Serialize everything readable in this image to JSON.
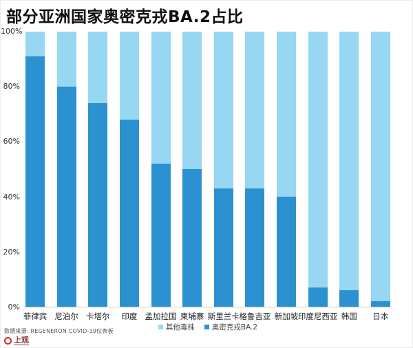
{
  "title": "部分亚洲国家奥密克戎BA.2占比",
  "y_axis": {
    "ticks": [
      "100%",
      "80%",
      "60%",
      "40%",
      "20%",
      "0%"
    ]
  },
  "legend": {
    "items": [
      {
        "label": "其他毒株",
        "color": "#97d7f1"
      },
      {
        "label": "奥密克戎BA.2",
        "color": "#2b91d0"
      }
    ]
  },
  "footer": {
    "source": "数据来源: REGENERON COVID-19仪表板",
    "logo_text": "上观"
  },
  "chart_data": {
    "type": "bar",
    "stacked": true,
    "title": "部分亚洲国家奥密克戎BA.2占比",
    "categories": [
      "菲律宾",
      "尼泊尔",
      "卡塔尔",
      "印度",
      "孟加拉国",
      "柬埔寨",
      "斯里兰卡",
      "格鲁吉亚",
      "新加坡",
      "印度尼西亚",
      "韩国",
      "日本"
    ],
    "series": [
      {
        "name": "奥密克戎BA.2",
        "color": "#2b91d0",
        "values": [
          91,
          80,
          74,
          68,
          52,
          50,
          43,
          43,
          40,
          7,
          6,
          2
        ]
      },
      {
        "name": "其他毒株",
        "color": "#97d7f1",
        "values": [
          9,
          20,
          26,
          32,
          48,
          50,
          57,
          57,
          60,
          93,
          94,
          98
        ]
      }
    ],
    "xlabel": "",
    "ylabel": "",
    "ylim": [
      0,
      100
    ],
    "grid": false,
    "legend_position": "bottom"
  }
}
